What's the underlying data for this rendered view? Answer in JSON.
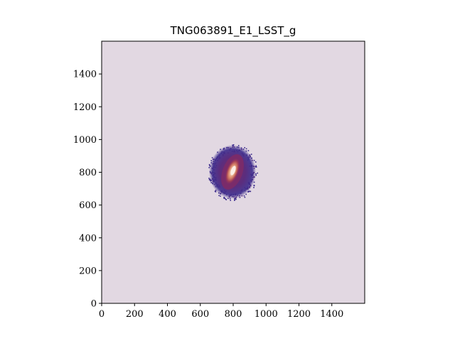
{
  "figure": {
    "title": "TNG063891_E1_LSST_g",
    "background_color": "#e2d8e2",
    "colormap": [
      "#3b2a8c",
      "#5b2d7d",
      "#7a2b6a",
      "#a23e55",
      "#d9886a",
      "#f4dccf"
    ]
  },
  "axes": {
    "x": {
      "range": [
        0,
        1600
      ],
      "ticks": [
        0,
        200,
        400,
        600,
        800,
        1000,
        1200,
        1400
      ]
    },
    "y": {
      "range": [
        0,
        1600
      ],
      "ticks": [
        0,
        200,
        400,
        600,
        800,
        1000,
        1200,
        1400
      ]
    }
  },
  "galaxy": {
    "center": [
      800,
      800
    ],
    "extent_x": [
      660,
      950
    ],
    "extent_y": [
      660,
      950
    ],
    "orientation": "elongated core tilted toward upper-right"
  }
}
